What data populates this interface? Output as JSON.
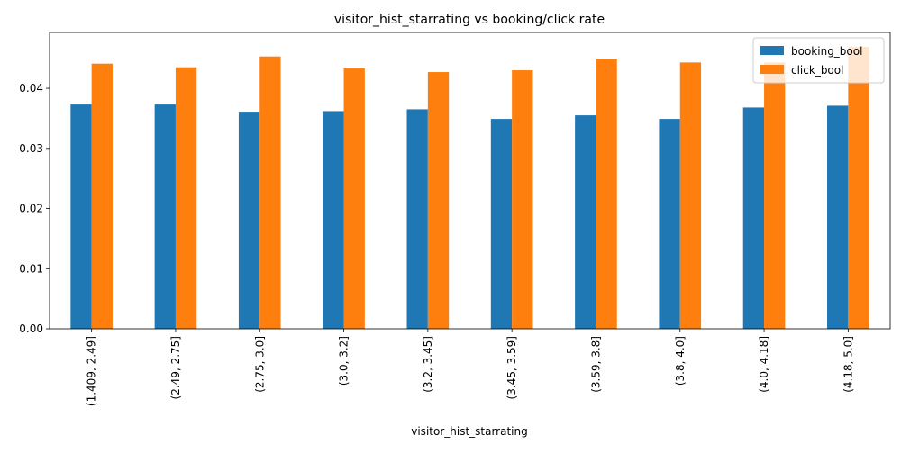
{
  "chart_data": {
    "type": "bar",
    "title": "visitor_hist_starrating vs booking/click rate",
    "xlabel": "visitor_hist_starrating",
    "ylabel": "",
    "categories": [
      "(1.409, 2.49]",
      "(2.49, 2.75]",
      "(2.75, 3.0]",
      "(3.0, 3.2]",
      "(3.2, 3.45]",
      "(3.45, 3.59]",
      "(3.59, 3.8]",
      "(3.8, 4.0]",
      "(4.0, 4.18]",
      "(4.18, 5.0]"
    ],
    "series": [
      {
        "name": "booking_bool",
        "color": "#1f77b4",
        "values": [
          0.0373,
          0.0373,
          0.0361,
          0.0362,
          0.0365,
          0.0349,
          0.0355,
          0.0349,
          0.0368,
          0.0371
        ]
      },
      {
        "name": "click_bool",
        "color": "#ff7f0e",
        "values": [
          0.0441,
          0.0435,
          0.0453,
          0.0433,
          0.0427,
          0.043,
          0.0449,
          0.0443,
          0.0443,
          0.0469
        ]
      }
    ],
    "ylim": [
      0,
      0.0493
    ],
    "yticks": [
      "0.00",
      "0.01",
      "0.02",
      "0.03",
      "0.04"
    ],
    "ytick_values": [
      0,
      0.01,
      0.02,
      0.03,
      0.04
    ],
    "grid": false,
    "legend_position": "top-right"
  }
}
